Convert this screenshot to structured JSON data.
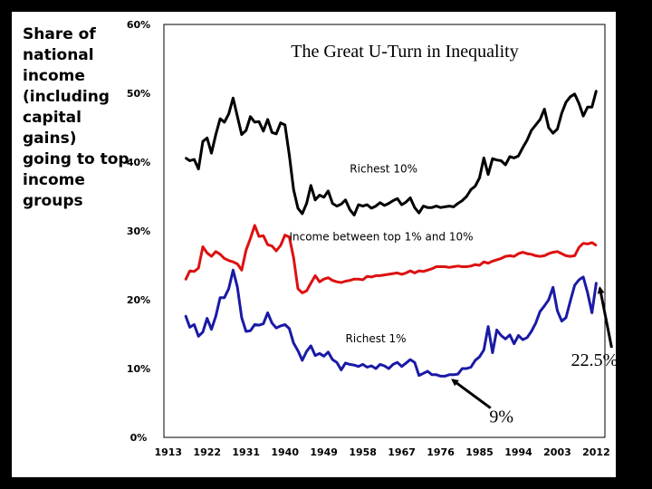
{
  "ylabel": "Share of\nnational\nincome\n(including\ncapital gains)\ngoing to top\nincome\ngroups",
  "chart_data": {
    "type": "line",
    "title": "The Great U-Turn in Inequality",
    "ylabel": "Share of national income (including capital gains) going to top income groups",
    "ylim": [
      0,
      60
    ],
    "yticks": [
      0,
      10,
      20,
      30,
      40,
      50,
      60
    ],
    "ytick_labels": [
      "0%",
      "10%",
      "20%",
      "30%",
      "40%",
      "50%",
      "60%"
    ],
    "xlim": [
      1912,
      2014
    ],
    "xticks": [
      1913,
      1922,
      1931,
      1940,
      1949,
      1958,
      1967,
      1976,
      1985,
      1994,
      2003,
      2012
    ],
    "xtick_labels": [
      "1913",
      "1922",
      "1931",
      "1940",
      "1949",
      "1958",
      "1967",
      "1976",
      "1985",
      "1994",
      "2003",
      "2012"
    ],
    "x": [
      1917,
      1918,
      1919,
      1920,
      1921,
      1922,
      1923,
      1924,
      1925,
      1926,
      1927,
      1928,
      1929,
      1930,
      1931,
      1932,
      1933,
      1934,
      1935,
      1936,
      1937,
      1938,
      1939,
      1940,
      1941,
      1942,
      1943,
      1944,
      1945,
      1946,
      1947,
      1948,
      1949,
      1950,
      1951,
      1952,
      1953,
      1954,
      1955,
      1956,
      1957,
      1958,
      1959,
      1960,
      1961,
      1962,
      1963,
      1964,
      1965,
      1966,
      1967,
      1968,
      1969,
      1970,
      1971,
      1972,
      1973,
      1974,
      1975,
      1976,
      1977,
      1978,
      1979,
      1980,
      1981,
      1982,
      1983,
      1984,
      1985,
      1986,
      1987,
      1988,
      1989,
      1990,
      1991,
      1992,
      1993,
      1994,
      1995,
      1996,
      1997,
      1998,
      1999,
      2000,
      2001,
      2002,
      2003,
      2004,
      2005,
      2006,
      2007,
      2008,
      2009,
      2010,
      2011,
      2012
    ],
    "series": [
      {
        "name": "Richest 10%",
        "color": "#000000",
        "values": [
          40.6,
          40.2,
          40.4,
          39.0,
          43.0,
          43.5,
          41.3,
          44.0,
          46.3,
          45.8,
          47.0,
          49.3,
          46.6,
          44.0,
          44.6,
          46.6,
          45.8,
          45.9,
          44.5,
          46.2,
          44.3,
          44.1,
          45.7,
          45.4,
          41.0,
          36.0,
          33.3,
          32.5,
          34.0,
          36.6,
          34.5,
          35.2,
          34.9,
          35.8,
          34.0,
          33.6,
          33.9,
          34.5,
          33.1,
          32.3,
          33.8,
          33.6,
          33.8,
          33.3,
          33.6,
          34.1,
          33.7,
          34.0,
          34.4,
          34.7,
          33.8,
          34.2,
          34.8,
          33.4,
          32.6,
          33.6,
          33.4,
          33.4,
          33.6,
          33.4,
          33.5,
          33.6,
          33.5,
          34.0,
          34.4,
          35.0,
          36.0,
          36.5,
          37.7,
          40.6,
          38.2,
          40.5,
          40.3,
          40.2,
          39.6,
          40.8,
          40.6,
          40.9,
          42.1,
          43.2,
          44.6,
          45.4,
          46.2,
          47.7,
          45.0,
          44.2,
          44.8,
          47.1,
          48.7,
          49.5,
          49.9,
          48.5,
          46.7,
          48.0,
          48.0,
          50.4
        ]
      },
      {
        "name": "Income between top 1% and 10%",
        "color": "#dd1111",
        "values": [
          22.9,
          24.2,
          24.1,
          24.6,
          27.7,
          26.8,
          26.3,
          27.0,
          26.6,
          26.0,
          25.7,
          25.5,
          25.2,
          24.3,
          27.2,
          28.9,
          30.8,
          29.2,
          29.3,
          28.0,
          27.8,
          27.1,
          27.9,
          29.4,
          29.1,
          26.1,
          21.6,
          21.0,
          21.3,
          22.4,
          23.5,
          22.6,
          23.0,
          23.2,
          22.8,
          22.6,
          22.5,
          22.7,
          22.8,
          23.0,
          23.0,
          22.9,
          23.4,
          23.3,
          23.5,
          23.5,
          23.6,
          23.7,
          23.8,
          23.9,
          23.7,
          23.9,
          24.2,
          23.9,
          24.2,
          24.1,
          24.3,
          24.5,
          24.8,
          24.8,
          24.8,
          24.7,
          24.8,
          24.9,
          24.8,
          24.8,
          24.9,
          25.1,
          25.0,
          25.5,
          25.3,
          25.6,
          25.8,
          26.0,
          26.3,
          26.4,
          26.3,
          26.7,
          26.9,
          26.7,
          26.6,
          26.4,
          26.3,
          26.4,
          26.7,
          26.9,
          27.0,
          26.7,
          26.4,
          26.3,
          26.4,
          27.6,
          28.2,
          28.1,
          28.3,
          27.9
        ]
      },
      {
        "name": "Richest 1%",
        "color": "#1a1aa6",
        "values": [
          17.7,
          16.0,
          16.4,
          14.7,
          15.3,
          17.3,
          15.7,
          17.6,
          20.3,
          20.3,
          21.6,
          24.3,
          21.8,
          17.4,
          15.4,
          15.5,
          16.4,
          16.3,
          16.5,
          18.1,
          16.6,
          15.9,
          16.2,
          16.4,
          15.8,
          13.7,
          12.6,
          11.2,
          12.5,
          13.3,
          11.9,
          12.2,
          11.8,
          12.4,
          11.3,
          10.9,
          9.8,
          10.8,
          10.6,
          10.5,
          10.3,
          10.6,
          10.2,
          10.4,
          10.0,
          10.6,
          10.4,
          10.0,
          10.6,
          10.9,
          10.3,
          10.8,
          11.3,
          10.9,
          9.0,
          9.3,
          9.6,
          9.1,
          9.1,
          8.9,
          8.9,
          9.1,
          9.1,
          9.2,
          10.0,
          10.0,
          10.2,
          11.2,
          11.7,
          12.7,
          16.1,
          12.3,
          15.6,
          14.8,
          14.3,
          14.9,
          13.6,
          14.8,
          14.2,
          14.5,
          15.4,
          16.6,
          18.3,
          19.1,
          20.0,
          21.8,
          18.4,
          16.9,
          17.4,
          19.8,
          22.1,
          22.9,
          23.3,
          21.0,
          18.1,
          22.5
        ]
      }
    ],
    "annotations": [
      {
        "text": "Richest 10%",
        "x": 1955,
        "y": 38.5,
        "series": "Richest 10%"
      },
      {
        "text": "Income between top 1% and 10%",
        "x": 1941,
        "y": 28.6,
        "series": "Income between top 1% and 10%"
      },
      {
        "text": "Richest 1%",
        "x": 1954,
        "y": 13.8,
        "series": "Richest 1%"
      },
      {
        "text": "9%",
        "x": 1977.5,
        "y": 9.0,
        "series": "Richest 1%",
        "callout": true
      },
      {
        "text": "22.5%",
        "x": 2012,
        "y": 22.5,
        "series": "Richest 1%",
        "callout": true
      }
    ]
  }
}
